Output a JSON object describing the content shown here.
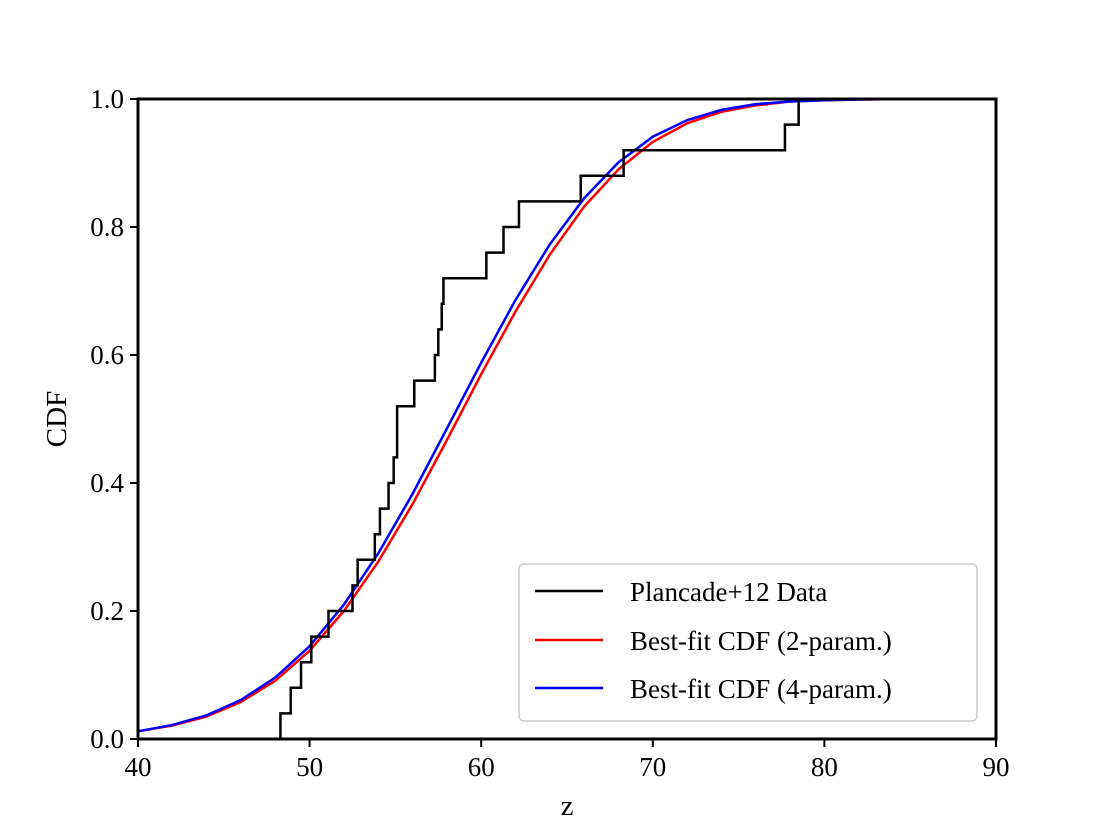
{
  "chart_data": {
    "type": "line",
    "title": "",
    "xlabel": "z",
    "ylabel": "CDF",
    "xlim": [
      40,
      90
    ],
    "ylim": [
      0.0,
      1.0
    ],
    "xticks": [
      40,
      50,
      60,
      70,
      80,
      90
    ],
    "yticks": [
      0.0,
      0.2,
      0.4,
      0.6,
      0.8,
      1.0
    ],
    "xtick_labels": [
      "40",
      "50",
      "60",
      "70",
      "80",
      "90"
    ],
    "ytick_labels": [
      "0.0",
      "0.2",
      "0.4",
      "0.6",
      "0.8",
      "1.0"
    ],
    "grid": false,
    "legend_position": "lower-right",
    "series": [
      {
        "name": "Plancade+12 Data",
        "kind": "step",
        "color": "#000000",
        "x": [
          48.3,
          48.3,
          48.9,
          48.9,
          49.5,
          49.5,
          50.1,
          50.1,
          51.1,
          51.1,
          52.5,
          52.5,
          52.8,
          52.8,
          53.8,
          53.8,
          54.1,
          54.1,
          54.6,
          54.6,
          54.9,
          54.9,
          55.1,
          55.1,
          56.1,
          56.1,
          57.3,
          57.3,
          57.5,
          57.5,
          57.7,
          57.7,
          57.8,
          57.8,
          60.3,
          60.3,
          61.3,
          61.3,
          62.2,
          62.2,
          65.8,
          65.8,
          68.3,
          68.3,
          77.7,
          77.7,
          78.5,
          78.5
        ],
        "y": [
          0.0,
          0.04,
          0.04,
          0.08,
          0.08,
          0.12,
          0.12,
          0.16,
          0.16,
          0.2,
          0.2,
          0.24,
          0.24,
          0.28,
          0.28,
          0.32,
          0.32,
          0.36,
          0.36,
          0.4,
          0.4,
          0.44,
          0.44,
          0.52,
          0.52,
          0.56,
          0.56,
          0.6,
          0.6,
          0.64,
          0.64,
          0.68,
          0.68,
          0.72,
          0.72,
          0.76,
          0.76,
          0.8,
          0.8,
          0.84,
          0.84,
          0.88,
          0.88,
          0.92,
          0.92,
          0.96,
          0.96,
          1.0
        ]
      },
      {
        "name": "Best-fit CDF (2-param.)",
        "kind": "line",
        "color": "#ff0000",
        "x": [
          40,
          42,
          44,
          46,
          48,
          50,
          52,
          54,
          56,
          58,
          60,
          62,
          64,
          66,
          68,
          70,
          72,
          74,
          76,
          78,
          80,
          82,
          84,
          86,
          88,
          90
        ],
        "y": [
          0.012,
          0.021,
          0.035,
          0.058,
          0.091,
          0.138,
          0.2,
          0.277,
          0.367,
          0.467,
          0.57,
          0.668,
          0.757,
          0.832,
          0.89,
          0.933,
          0.962,
          0.98,
          0.99,
          0.996,
          0.998,
          0.9993,
          0.9998,
          1.0,
          1.0,
          1.0
        ]
      },
      {
        "name": "Best-fit CDF (4-param.)",
        "kind": "line",
        "color": "#0000ff",
        "x": [
          40,
          42,
          44,
          46,
          48,
          50,
          52,
          54,
          56,
          58,
          60,
          62,
          64,
          66,
          68,
          70,
          72,
          74,
          76,
          78,
          80,
          82,
          84,
          86,
          88,
          90
        ],
        "y": [
          0.012,
          0.022,
          0.037,
          0.061,
          0.096,
          0.145,
          0.21,
          0.29,
          0.383,
          0.485,
          0.588,
          0.686,
          0.773,
          0.845,
          0.901,
          0.941,
          0.967,
          0.983,
          0.992,
          0.996,
          0.998,
          0.9993,
          0.9998,
          1.0,
          1.0,
          1.0
        ]
      }
    ]
  }
}
